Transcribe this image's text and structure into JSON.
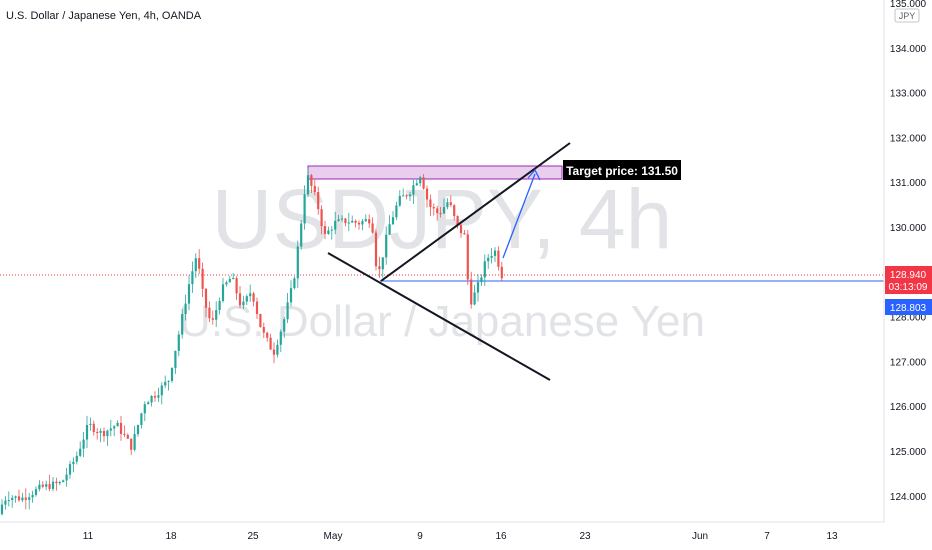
{
  "header": {
    "symbol_title": "U.S. Dollar / Japanese Yen, 4h, OANDA"
  },
  "watermark": {
    "symbol": "USDJPY, 4h",
    "description": "U.S. Dollar / Japanese Yen"
  },
  "currency_badge": "JPY",
  "annotation": {
    "target_label": "Target price: 131.50"
  },
  "price_labels": {
    "last": "128.940",
    "countdown": "03:13:09",
    "line": "128.803"
  },
  "colors": {
    "up": "#26a69a",
    "down": "#ef5350",
    "blue": "#2962ff",
    "zone": "#e1bee7",
    "zone_border": "#9c27b0",
    "last_price": "#f23645"
  },
  "chart_data": {
    "type": "candlestick",
    "title": "U.S. Dollar / Japanese Yen, 4h, OANDA",
    "y_ticks": [
      "124.000",
      "125.000",
      "126.000",
      "127.000",
      "128.000",
      "129.000",
      "130.000",
      "131.000",
      "132.000",
      "133.000",
      "134.000",
      "135.000"
    ],
    "x_ticks": [
      "11",
      "18",
      "25",
      "May",
      "9",
      "16",
      "23",
      "Jun",
      "7",
      "13"
    ],
    "ylim": [
      123.5,
      135.1
    ],
    "current_price": 128.94,
    "horizontal_line": 128.803,
    "target_price": 131.5,
    "resistance_zone": [
      131.0,
      131.35
    ],
    "grid": false,
    "legend": "none",
    "price_path": [
      [
        0,
        123.6
      ],
      [
        10,
        124.0
      ],
      [
        25,
        123.95
      ],
      [
        45,
        124.2
      ],
      [
        65,
        124.3
      ],
      [
        80,
        124.9
      ],
      [
        92,
        125.6
      ],
      [
        105,
        125.4
      ],
      [
        120,
        125.6
      ],
      [
        135,
        125.1
      ],
      [
        148,
        126.1
      ],
      [
        160,
        126.3
      ],
      [
        172,
        126.6
      ],
      [
        182,
        127.6
      ],
      [
        192,
        128.7
      ],
      [
        200,
        129.4
      ],
      [
        207,
        128.4
      ],
      [
        215,
        127.8
      ],
      [
        225,
        128.6
      ],
      [
        235,
        128.9
      ],
      [
        245,
        128.2
      ],
      [
        255,
        128.6
      ],
      [
        265,
        127.7
      ],
      [
        277,
        127.2
      ],
      [
        287,
        127.9
      ],
      [
        297,
        128.8
      ],
      [
        305,
        130.2
      ],
      [
        310,
        131.2
      ],
      [
        320,
        130.6
      ],
      [
        328,
        129.8
      ],
      [
        338,
        130.1
      ],
      [
        350,
        130.15
      ],
      [
        362,
        130.1
      ],
      [
        375,
        130.2
      ],
      [
        381,
        128.85
      ],
      [
        392,
        130.0
      ],
      [
        402,
        130.6
      ],
      [
        413,
        130.8
      ],
      [
        424,
        131.2
      ],
      [
        432,
        130.5
      ],
      [
        442,
        130.3
      ],
      [
        452,
        130.6
      ],
      [
        460,
        130.05
      ],
      [
        468,
        129.8
      ],
      [
        473,
        128.3
      ],
      [
        480,
        128.6
      ],
      [
        490,
        129.3
      ],
      [
        498,
        129.5
      ],
      [
        505,
        128.94
      ]
    ]
  }
}
